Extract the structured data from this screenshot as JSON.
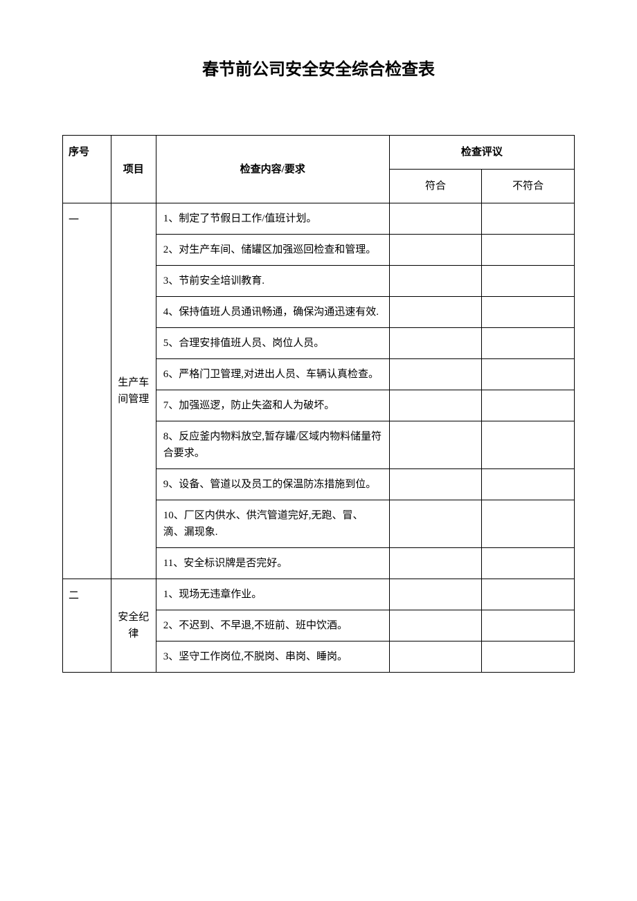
{
  "document": {
    "title": "春节前公司安全安全综合检查表",
    "background_color": "#ffffff",
    "border_color": "#000000",
    "font_family": "SimSun",
    "title_fontsize": 24,
    "body_fontsize": 15
  },
  "table": {
    "headers": {
      "seq": "序号",
      "project": "项目",
      "content": "检查内容/要求",
      "review": "检查评议",
      "compliant": "符合",
      "non_compliant": "不符合"
    },
    "column_widths": {
      "seq": 60,
      "project": 56,
      "content": 290,
      "compliant": 115,
      "non_compliant": 115
    },
    "sections": [
      {
        "seq": "一",
        "project": "生产车间管理",
        "items": [
          "1、制定了节假日工作/值班计划。",
          "2、对生产车间、储罐区加强巡回检查和管理。",
          "3、节前安全培训教育.",
          "  4、保持值班人员通讯畅通，确保沟通迅速有效.",
          "5、合理安排值班人员、岗位人员。",
          "6、严格门卫管理,对进出人员、车辆认真检查。",
          "  7、加强巡逻，防止失盗和人为破坏。",
          "8、反应釜内物料放空,暂存罐/区域内物料储量符合要求。",
          "9、设备、管道以及员工的保温防冻措施到位。",
          "10、厂区内供水、供汽管道完好,无跑、冒、滴、漏现象.",
          "11、安全标识牌是否完好。"
        ]
      },
      {
        "seq": "二",
        "project": "安全纪律",
        "items": [
          "1、现场无违章作业。",
          "2、不迟到、不早退,不班前、班中饮酒。",
          "3、坚守工作岗位,不脱岗、串岗、睡岗。"
        ]
      }
    ]
  }
}
